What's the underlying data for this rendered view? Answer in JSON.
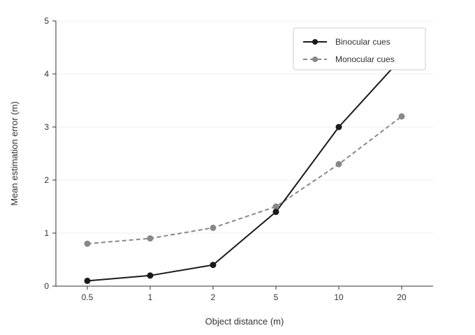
{
  "chart_data": {
    "type": "line",
    "title": "",
    "xlabel": "Object distance (m)",
    "ylabel": "Mean estimation error (m)",
    "categories": [
      "0.5",
      "1",
      "2",
      "5",
      "10",
      "20"
    ],
    "ylim": [
      0,
      5
    ],
    "yticks": [
      "0",
      "1",
      "2",
      "3",
      "4",
      "5"
    ],
    "grid": "horizontal",
    "legend_position": "top-right",
    "series": [
      {
        "name": "Binocular cues",
        "values": [
          0.1,
          0.2,
          0.4,
          1.4,
          3.0,
          4.3
        ],
        "color": "#1a1a1a",
        "dash": "solid"
      },
      {
        "name": "Monocular cues",
        "values": [
          0.8,
          0.9,
          1.1,
          1.5,
          2.3,
          3.2
        ],
        "color": "#888888",
        "dash": "dashed"
      }
    ]
  }
}
